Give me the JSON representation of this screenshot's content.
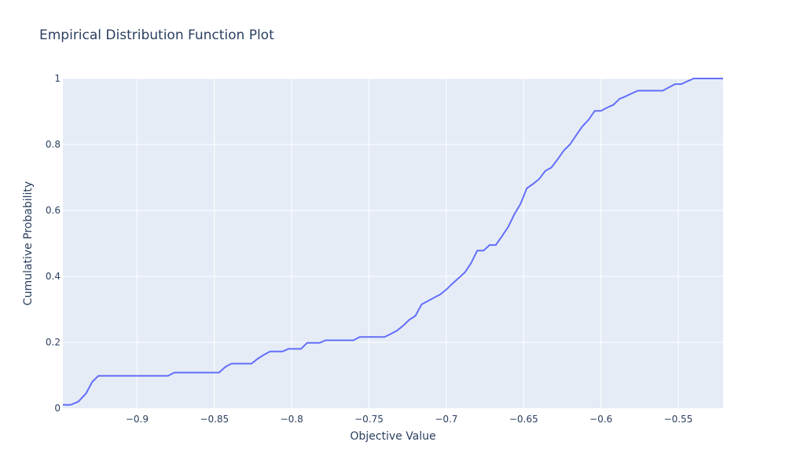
{
  "chart_data": {
    "type": "line",
    "title": "Empirical Distribution Function Plot",
    "xlabel": "Objective Value",
    "ylabel": "Cumulative Probability",
    "xlim": [
      -0.948,
      -0.521
    ],
    "ylim": [
      0,
      1
    ],
    "xticks": [
      -0.9,
      -0.85,
      -0.8,
      -0.75,
      -0.7,
      -0.65,
      -0.6,
      -0.55
    ],
    "xtick_labels": [
      "−0.9",
      "−0.85",
      "−0.8",
      "−0.75",
      "−0.7",
      "−0.65",
      "−0.6",
      "−0.55"
    ],
    "yticks": [
      0,
      0.2,
      0.4,
      0.6,
      0.8,
      1
    ],
    "ytick_labels": [
      "0",
      "0.2",
      "0.4",
      "0.6",
      "0.8",
      "1"
    ],
    "grid": true,
    "colors": {
      "line": "#636efa",
      "plot_bg": "#e5ecf6",
      "grid": "#ffffff",
      "text": "#2a3f5f"
    },
    "series": [
      {
        "x": [
          -0.948,
          -0.943,
          -0.938,
          -0.933,
          -0.929,
          -0.925,
          -0.92,
          -0.915,
          -0.91,
          -0.905,
          -0.9,
          -0.895,
          -0.89,
          -0.885,
          -0.88,
          -0.876,
          -0.87,
          -0.865,
          -0.86,
          -0.855,
          -0.85,
          -0.847,
          -0.843,
          -0.839,
          -0.834,
          -0.829,
          -0.826,
          -0.822,
          -0.818,
          -0.814,
          -0.81,
          -0.806,
          -0.802,
          -0.798,
          -0.794,
          -0.79,
          -0.786,
          -0.782,
          -0.778,
          -0.774,
          -0.77,
          -0.765,
          -0.76,
          -0.756,
          -0.752,
          -0.748,
          -0.744,
          -0.74,
          -0.736,
          -0.732,
          -0.728,
          -0.724,
          -0.72,
          -0.716,
          -0.712,
          -0.708,
          -0.704,
          -0.7,
          -0.696,
          -0.692,
          -0.688,
          -0.684,
          -0.68,
          -0.676,
          -0.672,
          -0.668,
          -0.664,
          -0.66,
          -0.656,
          -0.652,
          -0.648,
          -0.644,
          -0.64,
          -0.636,
          -0.632,
          -0.628,
          -0.624,
          -0.62,
          -0.616,
          -0.612,
          -0.608,
          -0.604,
          -0.6,
          -0.596,
          -0.592,
          -0.588,
          -0.584,
          -0.58,
          -0.576,
          -0.572,
          -0.568,
          -0.564,
          -0.56,
          -0.556,
          -0.552,
          -0.548,
          -0.544,
          -0.54,
          -0.536,
          -0.532,
          -0.528,
          -0.524,
          -0.521
        ],
        "y": [
          0.01,
          0.01,
          0.02,
          0.045,
          0.08,
          0.098,
          0.098,
          0.098,
          0.098,
          0.098,
          0.098,
          0.098,
          0.098,
          0.098,
          0.098,
          0.108,
          0.108,
          0.108,
          0.108,
          0.108,
          0.108,
          0.108,
          0.125,
          0.135,
          0.135,
          0.135,
          0.135,
          0.15,
          0.162,
          0.172,
          0.172,
          0.172,
          0.18,
          0.18,
          0.18,
          0.198,
          0.198,
          0.198,
          0.206,
          0.206,
          0.206,
          0.206,
          0.206,
          0.216,
          0.216,
          0.216,
          0.216,
          0.216,
          0.225,
          0.235,
          0.25,
          0.268,
          0.28,
          0.315,
          0.325,
          0.335,
          0.345,
          0.36,
          0.378,
          0.395,
          0.412,
          0.44,
          0.478,
          0.478,
          0.495,
          0.495,
          0.522,
          0.55,
          0.588,
          0.62,
          0.667,
          0.68,
          0.695,
          0.72,
          0.73,
          0.755,
          0.782,
          0.8,
          0.828,
          0.855,
          0.875,
          0.902,
          0.902,
          0.912,
          0.92,
          0.938,
          0.946,
          0.955,
          0.963,
          0.963,
          0.963,
          0.963,
          0.963,
          0.973,
          0.983,
          0.983,
          0.992,
          1.0,
          1.0,
          1.0,
          1.0,
          1.0,
          1.0
        ]
      }
    ]
  }
}
